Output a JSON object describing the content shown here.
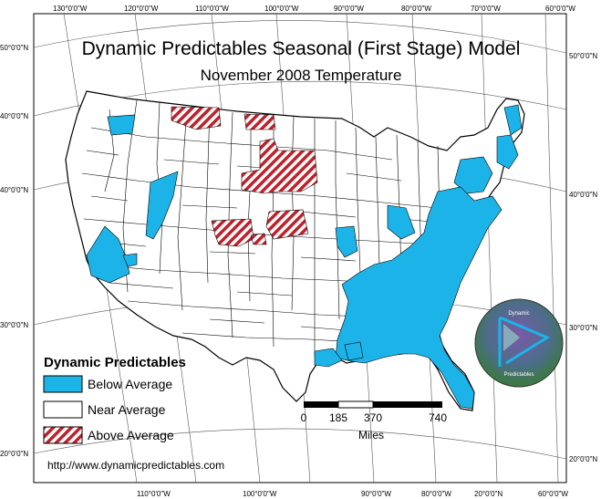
{
  "title": "Dynamic Predictables Seasonal (First Stage) Model",
  "subtitle": "November 2008 Temperature",
  "graticule": {
    "top_labels": [
      "130°0'0\"W",
      "120°0'0\"W",
      "110°0'0\"W",
      "100°0'0\"W",
      "90°0'0\"W",
      "80°0'0\"W",
      "70°0'0\"W",
      "60°0'0\"W"
    ],
    "bottom_labels": [
      "110°0'0\"W",
      "100°0'0\"W",
      "90°0'0\"W",
      "80°0'0\"W",
      "20°0'0\"N",
      "60°0'0\"W"
    ],
    "left_labels": [
      "50°0'0\"N",
      "40°0'0\"N",
      "40°0'0\"N",
      "30°0'0\"N",
      "20°0'0\"N"
    ],
    "right_labels": [
      "50°0'0\"N",
      "40°0'0\"N",
      "30°0'0\"N",
      "20°0'0\"N"
    ]
  },
  "legend": {
    "title": "Dynamic Predictables",
    "items": [
      {
        "label": "Below Average",
        "color": "#1cb4e8",
        "pattern": "solid"
      },
      {
        "label": "Near Average",
        "color": "#ffffff",
        "pattern": "solid"
      },
      {
        "label": "Above Average",
        "color": "#c0202a",
        "pattern": "hatch"
      }
    ]
  },
  "scalebar": {
    "ticks": [
      "0",
      "185",
      "370",
      "740"
    ],
    "unit": "Miles"
  },
  "logo": {
    "text_top": "Dynamic",
    "text_bottom": "Predictables"
  },
  "url": "http://www.dynamicpredictables.com",
  "colors": {
    "below": "#1cb4e8",
    "near": "#ffffff",
    "above": "#c0202a",
    "outline": "#000000"
  }
}
